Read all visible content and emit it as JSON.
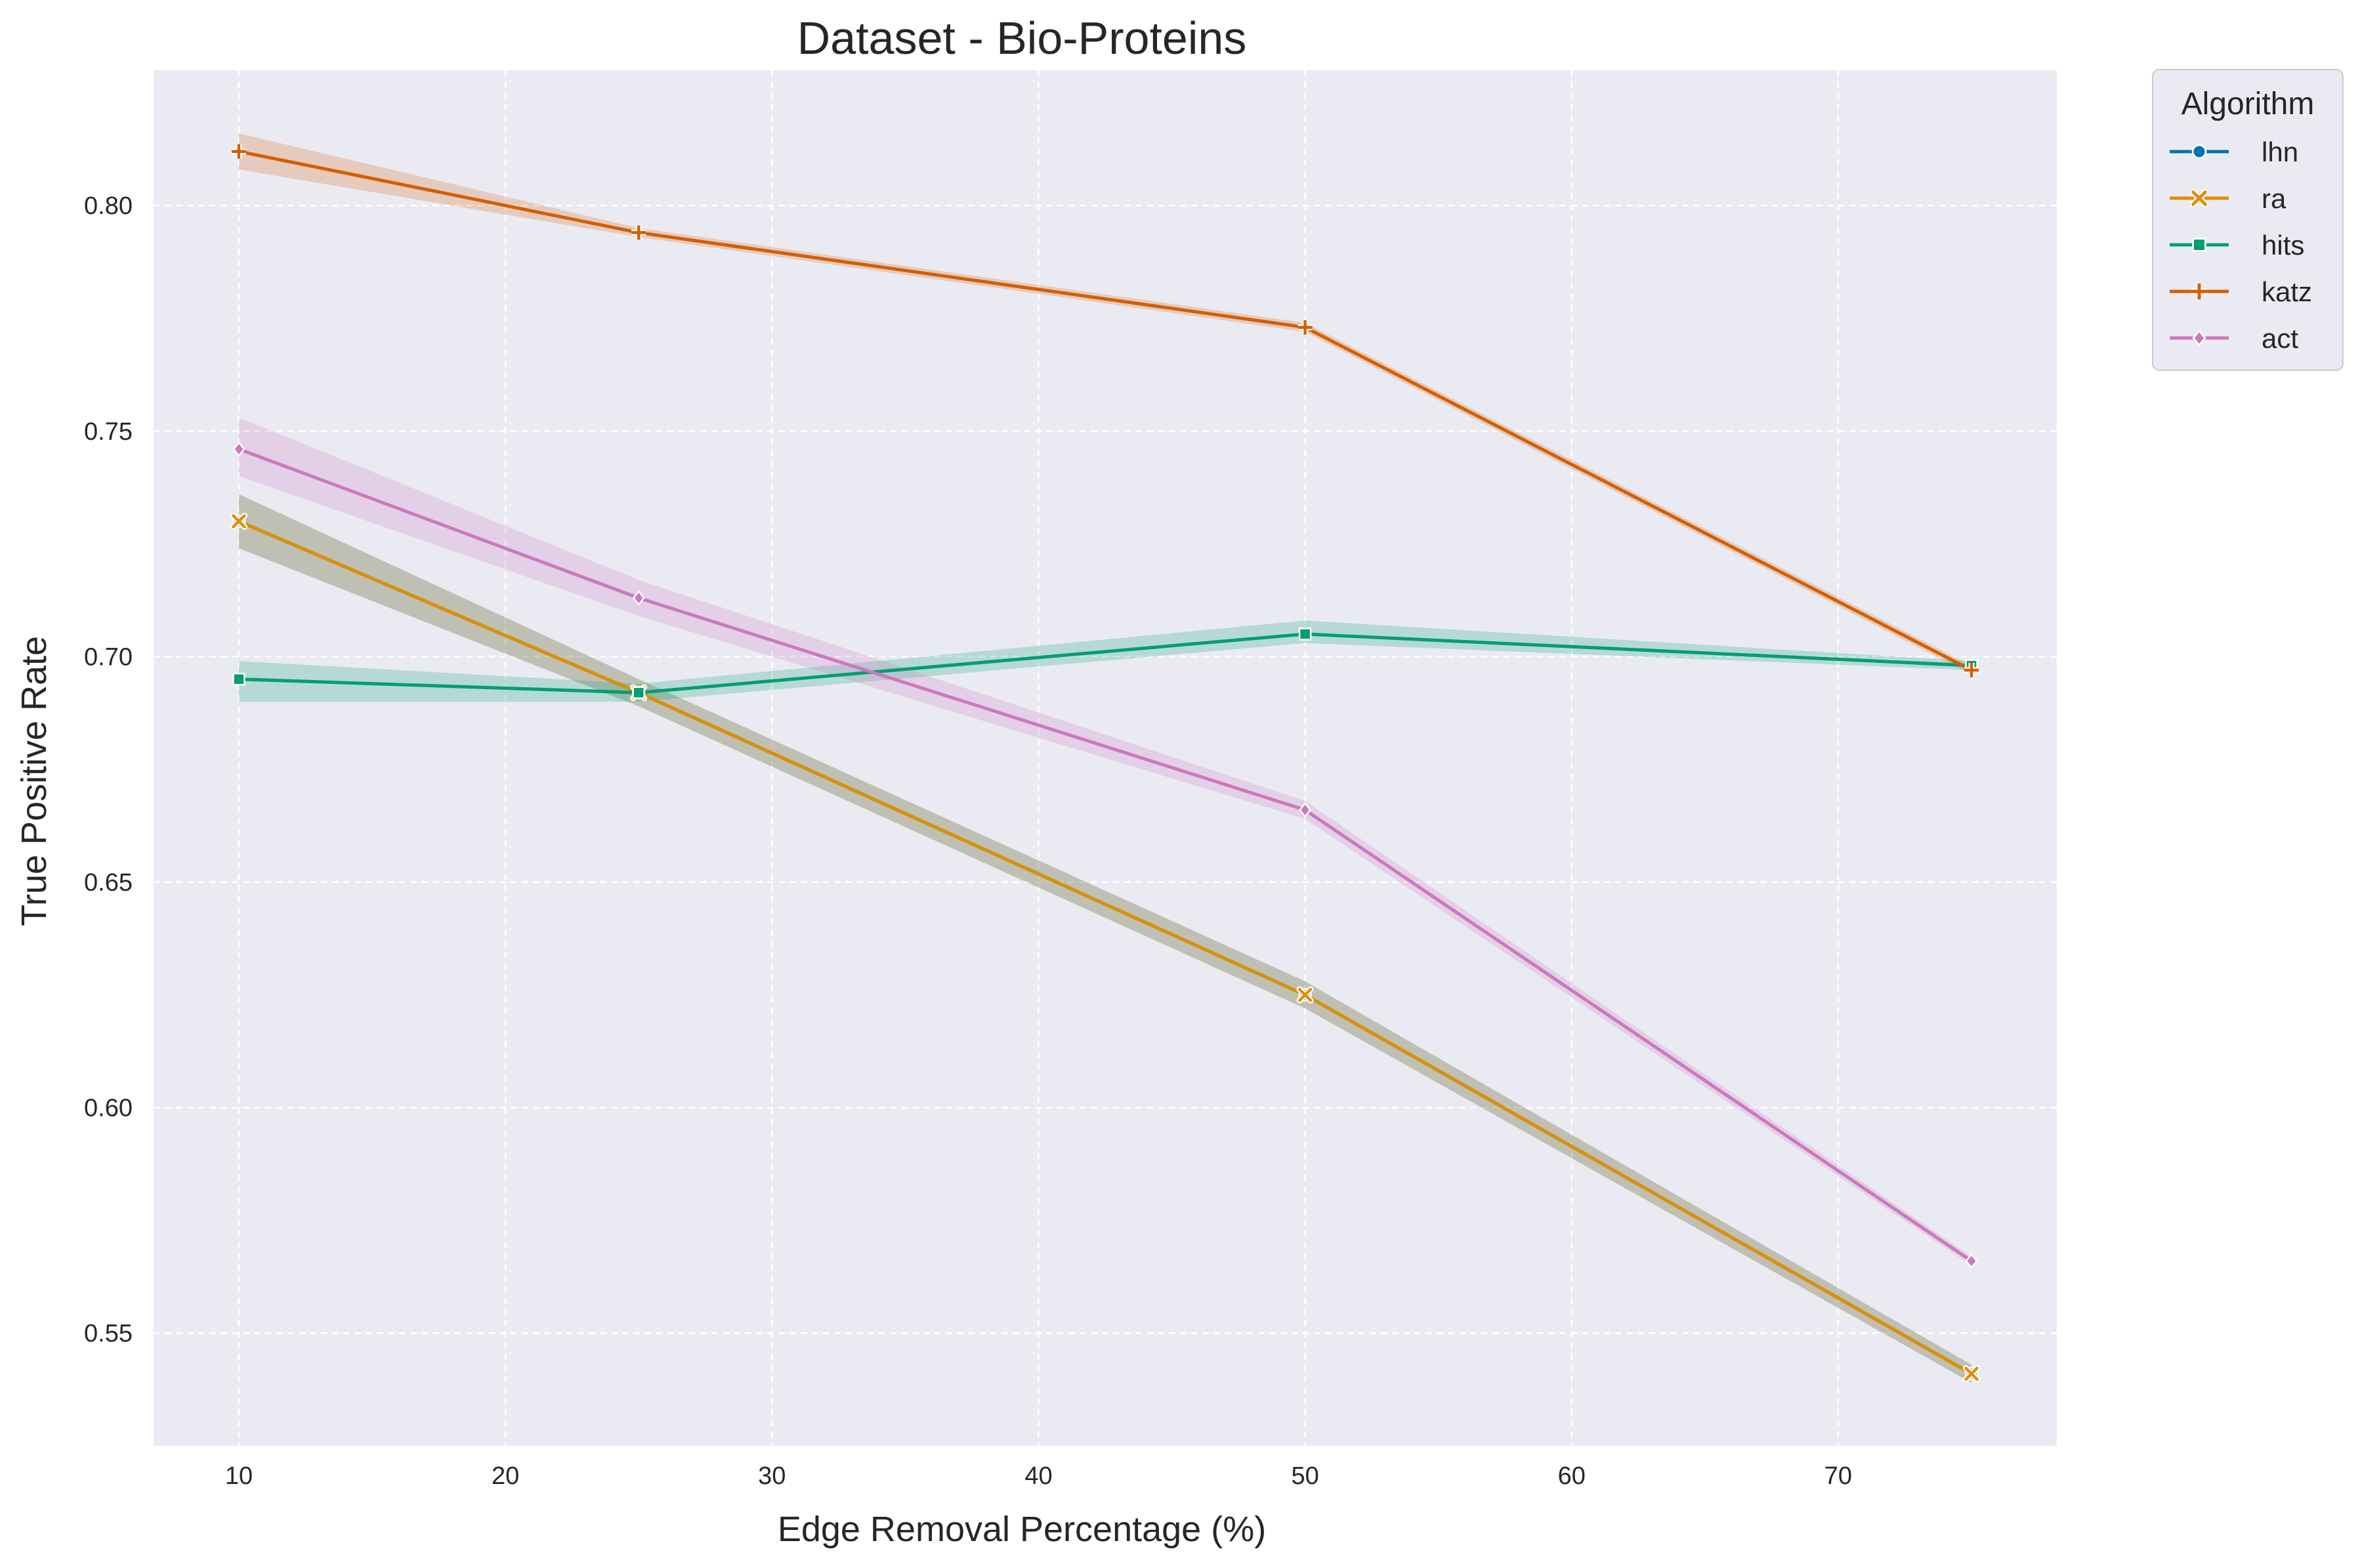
{
  "chart_data": {
    "type": "line",
    "title": "Dataset - Bio-Proteins",
    "xlabel": "Edge Removal Percentage (%)",
    "ylabel": "True Positive Rate",
    "xlim": [
      6.8,
      78.2
    ],
    "ylim": [
      0.525,
      0.83
    ],
    "xticks": [
      10,
      20,
      30,
      40,
      50,
      60,
      70
    ],
    "yticks": [
      0.55,
      0.6,
      0.65,
      0.7,
      0.75,
      0.8
    ],
    "ytick_labels": [
      "0.55",
      "0.60",
      "0.65",
      "0.70",
      "0.75",
      "0.80"
    ],
    "x": [
      10,
      25,
      50,
      75
    ],
    "grid": true,
    "legend": {
      "title": "Algorithm",
      "placement": "outside-top-right"
    },
    "series": [
      {
        "name": "lhn",
        "color": "#0173b2",
        "marker": "circle",
        "values": [
          0.73,
          0.692,
          0.625,
          0.541
        ],
        "ci_low": [
          0.724,
          0.689,
          0.622,
          0.539
        ],
        "ci_high": [
          0.736,
          0.695,
          0.628,
          0.543
        ]
      },
      {
        "name": "ra",
        "color": "#de8f05",
        "marker": "x",
        "values": [
          0.73,
          0.692,
          0.625,
          0.541
        ],
        "ci_low": [
          0.724,
          0.689,
          0.622,
          0.539
        ],
        "ci_high": [
          0.736,
          0.695,
          0.628,
          0.543
        ]
      },
      {
        "name": "hits",
        "color": "#029e73",
        "marker": "square",
        "values": [
          0.695,
          0.692,
          0.705,
          0.698
        ],
        "ci_low": [
          0.69,
          0.69,
          0.703,
          0.697
        ],
        "ci_high": [
          0.699,
          0.694,
          0.708,
          0.699
        ]
      },
      {
        "name": "katz",
        "color": "#d55e00",
        "marker": "plus",
        "values": [
          0.812,
          0.794,
          0.773,
          0.697
        ],
        "ci_low": [
          0.808,
          0.793,
          0.772,
          0.696
        ],
        "ci_high": [
          0.816,
          0.795,
          0.774,
          0.698
        ]
      },
      {
        "name": "act",
        "color": "#cc78bc",
        "marker": "diamond",
        "values": [
          0.746,
          0.713,
          0.666,
          0.566
        ],
        "ci_low": [
          0.74,
          0.709,
          0.664,
          0.565
        ],
        "ci_high": [
          0.753,
          0.717,
          0.668,
          0.567
        ]
      }
    ]
  }
}
